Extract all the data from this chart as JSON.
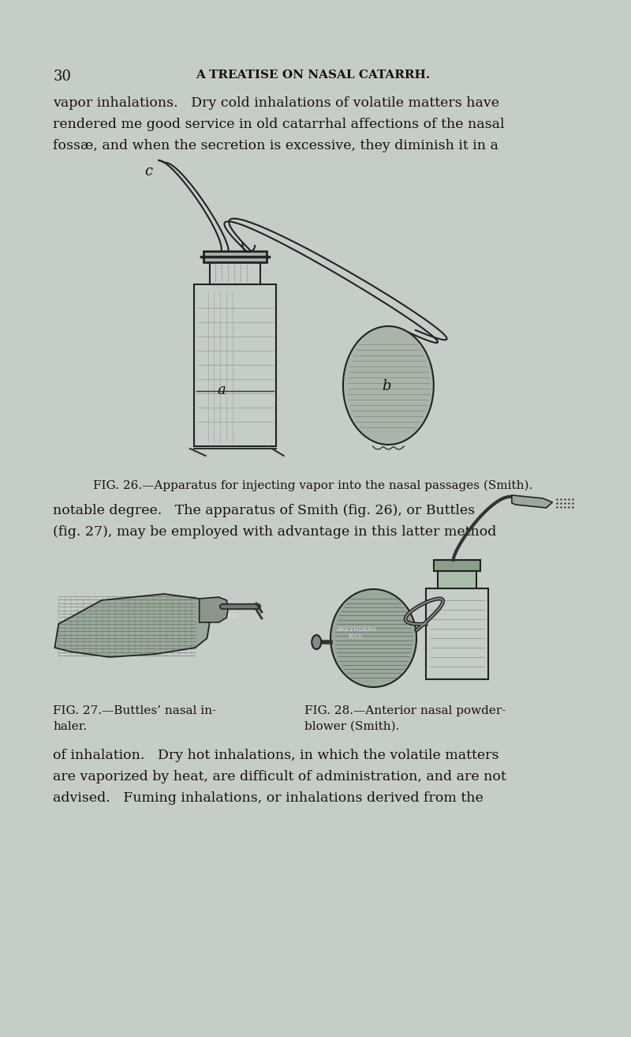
{
  "bg_color": "#c5cdc7",
  "text_color": "#1a1208",
  "page_number": "30",
  "header": "A TREATISE ON NASAL CATARRH.",
  "para1_lines": [
    "vapor inhalations.   Dry cold inhalations of volatile matters have",
    "rendered me good service in old catarrhal affections of the nasal",
    "fossæ, and when the secretion is excessive, they diminish it in a"
  ],
  "fig26_caption": "FIG. 26.—Apparatus for injecting vapor into the nasal passages (Smith).",
  "para2_lines": [
    "notable degree.   The apparatus of Smith (fig. 26), or Buttles",
    "(fig. 27), may be employed with advantage in this latter method"
  ],
  "fig27_caption_line1": "FIG. 27.—Buttles’ nasal in-",
  "fig27_caption_line2": "haler.",
  "fig28_caption_line1": "FIG. 28.—Anterior nasal powder-",
  "fig28_caption_line2": "blower (Smith).",
  "para3_lines": [
    "of inhalation.   Dry hot inhalations, in which the volatile matters",
    "are vaporized by heat, are difficult of administration, and are not",
    "advised.   Fuming inhalations, or inhalations derived from the"
  ],
  "text_size": 12.5,
  "header_size": 11.0,
  "caption_size": 11.0,
  "pagenum_size": 13.0
}
